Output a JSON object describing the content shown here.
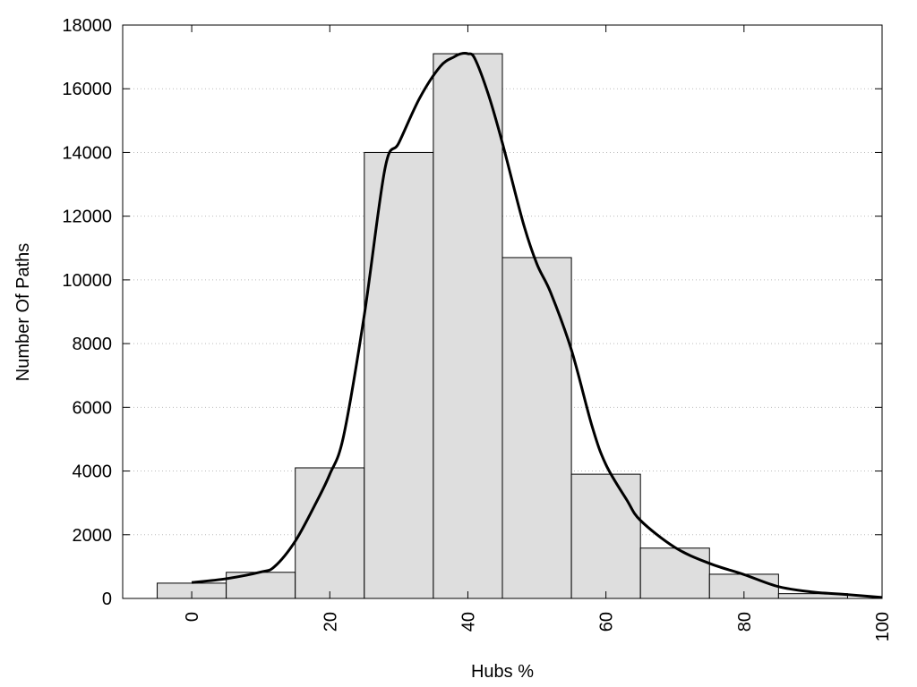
{
  "chart_data": {
    "type": "bar",
    "xlabel": "Hubs %",
    "ylabel": "Number Of Paths",
    "xlim": [
      -10,
      100
    ],
    "ylim": [
      0,
      18000
    ],
    "x_ticks": [
      0,
      20,
      40,
      60,
      80,
      100
    ],
    "y_ticks": [
      0,
      2000,
      4000,
      6000,
      8000,
      10000,
      12000,
      14000,
      16000,
      18000
    ],
    "grid": "horizontal-dotted",
    "bin_width": 10,
    "bins": [
      {
        "x": 0,
        "value": 480
      },
      {
        "x": 10,
        "value": 820
      },
      {
        "x": 20,
        "value": 4100
      },
      {
        "x": 30,
        "value": 14000
      },
      {
        "x": 40,
        "value": 17100
      },
      {
        "x": 50,
        "value": 10700
      },
      {
        "x": 60,
        "value": 3900
      },
      {
        "x": 70,
        "value": 1580
      },
      {
        "x": 80,
        "value": 760
      },
      {
        "x": 90,
        "value": 150
      }
    ],
    "density_curve": {
      "x": [
        0,
        5,
        10,
        12,
        15,
        18,
        20,
        22,
        25,
        28,
        30,
        33,
        36,
        38,
        39,
        40,
        41,
        43,
        45,
        48,
        50,
        52,
        55,
        58,
        60,
        63,
        65,
        70,
        75,
        80,
        85,
        90,
        95,
        100
      ],
      "y": [
        500,
        620,
        830,
        1000,
        1800,
        3000,
        3900,
        5100,
        8900,
        13500,
        14300,
        15700,
        16700,
        17000,
        17100,
        17100,
        16950,
        15800,
        14300,
        11800,
        10500,
        9600,
        7800,
        5400,
        4200,
        3100,
        2450,
        1600,
        1100,
        750,
        370,
        200,
        120,
        30
      ]
    },
    "bar_fill": "#dedede",
    "bar_stroke": "#000000",
    "curve_color": "#000000"
  }
}
